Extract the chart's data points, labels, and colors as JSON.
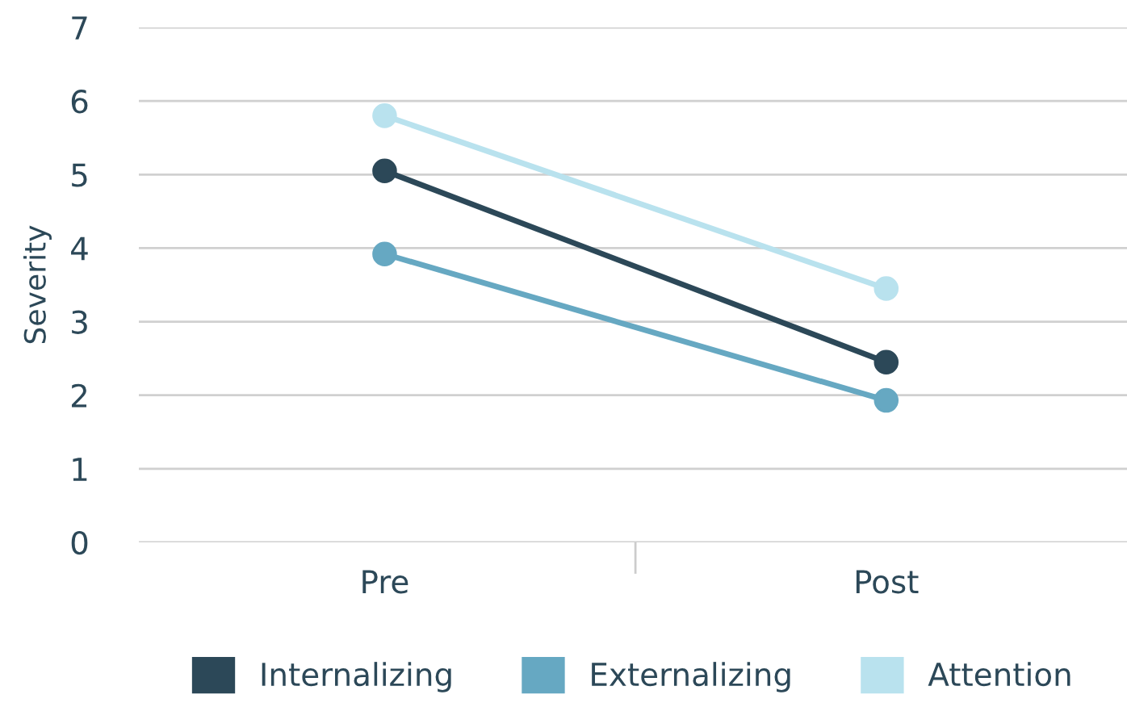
{
  "chart_data": {
    "type": "line",
    "ylabel": "Severity",
    "categories": [
      "Pre",
      "Post"
    ],
    "series": [
      {
        "name": "Internalizing",
        "color": "#2c4858",
        "values": [
          5.05,
          2.45
        ]
      },
      {
        "name": "Externalizing",
        "color": "#66a8c2",
        "values": [
          3.92,
          1.93
        ]
      },
      {
        "name": "Attention",
        "color": "#b9e2ee",
        "values": [
          5.8,
          3.45
        ]
      }
    ],
    "ylim": [
      0,
      7
    ],
    "yticks": [
      0,
      1,
      2,
      3,
      4,
      5,
      6,
      7
    ],
    "grid": "y",
    "legend": "bottom",
    "marker": "circle",
    "line_style": "solid"
  }
}
